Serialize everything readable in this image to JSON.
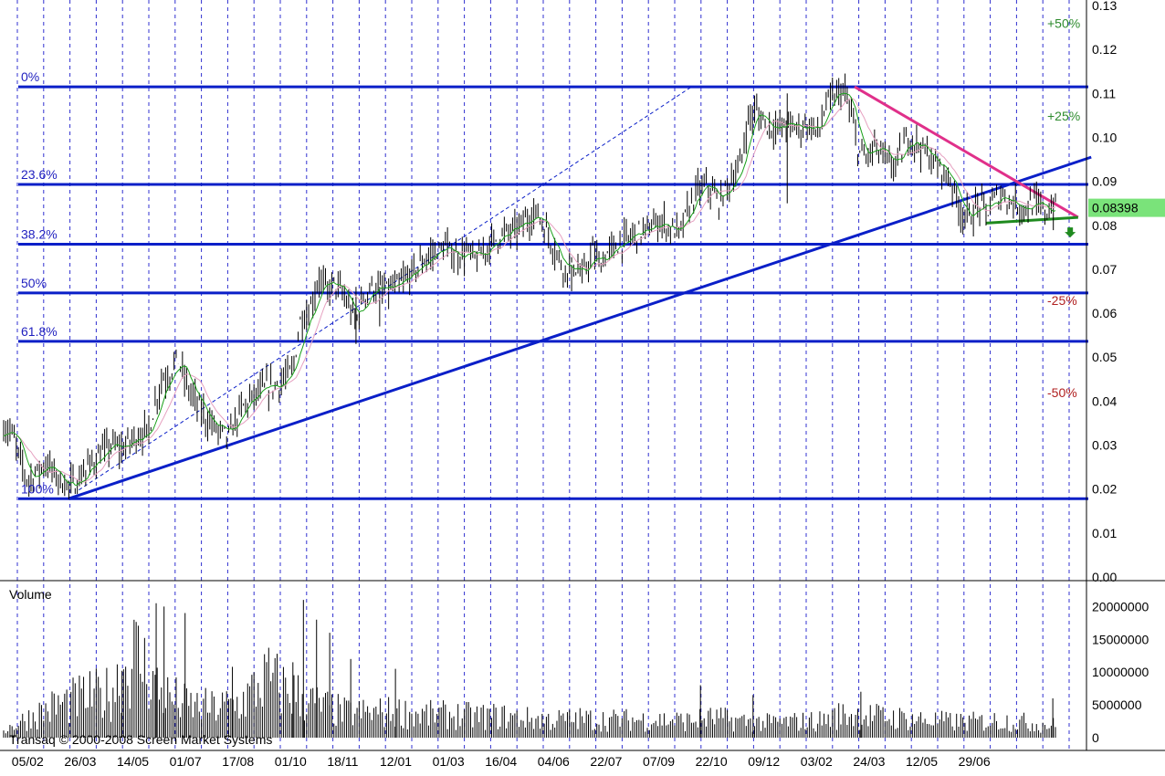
{
  "chart_data": {
    "type": "candlestick",
    "price_axis": {
      "ylim": [
        0.0,
        0.13
      ],
      "ticks": [
        "0.13",
        "0.12",
        "0.11",
        "0.10",
        "0.09",
        "0.08",
        "0.07",
        "0.06",
        "0.05",
        "0.04",
        "0.03",
        "0.02",
        "0.01",
        "0.00"
      ]
    },
    "volume_axis": {
      "label": "Volume",
      "ylim": [
        0,
        22000000
      ],
      "ticks": [
        "20000000",
        "15000000",
        "10000000",
        "5000000",
        "0"
      ]
    },
    "x_ticks": [
      "05/02",
      "26/03",
      "14/05",
      "01/07",
      "17/08",
      "01/10",
      "18/11",
      "12/01",
      "01/03",
      "16/04",
      "04/06",
      "22/07",
      "07/09",
      "22/10",
      "09/12",
      "03/02",
      "24/03",
      "12/05",
      "29/06"
    ],
    "last_price": "0.08398",
    "fib_levels": [
      {
        "label": "0%",
        "value": 0.1115
      },
      {
        "label": "23.6%",
        "value": 0.0893
      },
      {
        "label": "38.2%",
        "value": 0.0757
      },
      {
        "label": "50%",
        "value": 0.0646
      },
      {
        "label": "61.8%",
        "value": 0.0536
      },
      {
        "label": "100%",
        "value": 0.0178
      }
    ],
    "pct_levels": [
      {
        "label": "+50%",
        "value": 0.1259,
        "kind": "pos"
      },
      {
        "label": "+25%",
        "value": 0.1049,
        "kind": "pos"
      },
      {
        "label": "-25%",
        "value": 0.0629,
        "kind": "neg"
      },
      {
        "label": "-50%",
        "value": 0.0419,
        "kind": "neg"
      }
    ],
    "trendlines": [
      {
        "name": "support",
        "color": "#0a1fc8",
        "from": {
          "x": 2.6,
          "y": 0.0178
        },
        "to": {
          "x": 41.5,
          "y": 0.0955
        }
      },
      {
        "name": "resistance",
        "color": "#e0308a",
        "from": {
          "x": 32.5,
          "y": 0.1115
        },
        "to": {
          "x": 41.0,
          "y": 0.0818
        }
      },
      {
        "name": "low-support",
        "color": "#1f8a1f",
        "from": {
          "x": 37.5,
          "y": 0.0805
        },
        "to": {
          "x": 41.0,
          "y": 0.0818
        }
      },
      {
        "name": "channel",
        "color": "#0a1fc8",
        "dashed": true,
        "from": {
          "x": 3.0,
          "y": 0.0198
        },
        "to": {
          "x": 26.3,
          "y": 0.1115
        }
      }
    ],
    "price_path": [
      [
        0.0,
        0.034
      ],
      [
        0.3,
        0.033
      ],
      [
        0.6,
        0.027
      ],
      [
        0.9,
        0.022
      ],
      [
        1.3,
        0.024
      ],
      [
        1.6,
        0.026
      ],
      [
        2.0,
        0.023
      ],
      [
        2.3,
        0.021
      ],
      [
        2.7,
        0.021
      ],
      [
        3.2,
        0.025
      ],
      [
        3.7,
        0.028
      ],
      [
        4.1,
        0.03
      ],
      [
        4.5,
        0.029
      ],
      [
        5.0,
        0.032
      ],
      [
        5.5,
        0.033
      ],
      [
        6.0,
        0.045
      ],
      [
        6.3,
        0.046
      ],
      [
        6.6,
        0.05
      ],
      [
        7.0,
        0.043
      ],
      [
        7.3,
        0.04
      ],
      [
        7.7,
        0.036
      ],
      [
        8.2,
        0.033
      ],
      [
        8.6,
        0.032
      ],
      [
        9.0,
        0.038
      ],
      [
        9.5,
        0.041
      ],
      [
        10.0,
        0.043
      ],
      [
        10.5,
        0.044
      ],
      [
        11.0,
        0.047
      ],
      [
        11.3,
        0.059
      ],
      [
        11.6,
        0.06
      ],
      [
        12.0,
        0.068
      ],
      [
        12.3,
        0.065
      ],
      [
        12.6,
        0.067
      ],
      [
        13.0,
        0.063
      ],
      [
        13.4,
        0.058
      ],
      [
        13.7,
        0.064
      ],
      [
        14.0,
        0.066
      ],
      [
        14.5,
        0.065
      ],
      [
        15.0,
        0.066
      ],
      [
        15.5,
        0.069
      ],
      [
        16.0,
        0.072
      ],
      [
        16.4,
        0.074
      ],
      [
        16.8,
        0.075
      ],
      [
        17.2,
        0.073
      ],
      [
        17.6,
        0.074
      ],
      [
        18.0,
        0.072
      ],
      [
        18.5,
        0.076
      ],
      [
        19.0,
        0.078
      ],
      [
        19.5,
        0.079
      ],
      [
        20.0,
        0.082
      ],
      [
        20.3,
        0.083
      ],
      [
        20.6,
        0.079
      ],
      [
        21.0,
        0.074
      ],
      [
        21.3,
        0.07
      ],
      [
        21.7,
        0.071
      ],
      [
        22.0,
        0.068
      ],
      [
        22.4,
        0.074
      ],
      [
        22.7,
        0.071
      ],
      [
        23.0,
        0.074
      ],
      [
        23.5,
        0.076
      ],
      [
        24.0,
        0.078
      ],
      [
        24.5,
        0.079
      ],
      [
        25.0,
        0.081
      ],
      [
        25.4,
        0.079
      ],
      [
        25.7,
        0.078
      ],
      [
        26.0,
        0.083
      ],
      [
        26.4,
        0.088
      ],
      [
        26.8,
        0.089
      ],
      [
        27.2,
        0.085
      ],
      [
        27.6,
        0.09
      ],
      [
        28.0,
        0.093
      ],
      [
        28.3,
        0.104
      ],
      [
        28.6,
        0.106
      ],
      [
        29.0,
        0.103
      ],
      [
        29.4,
        0.102
      ],
      [
        29.8,
        0.103
      ],
      [
        30.2,
        0.102
      ],
      [
        30.6,
        0.103
      ],
      [
        31.0,
        0.101
      ],
      [
        31.3,
        0.108
      ],
      [
        31.6,
        0.109
      ],
      [
        31.9,
        0.111
      ],
      [
        32.2,
        0.106
      ],
      [
        32.5,
        0.097
      ],
      [
        32.8,
        0.095
      ],
      [
        33.1,
        0.098
      ],
      [
        33.4,
        0.096
      ],
      [
        33.8,
        0.093
      ],
      [
        34.1,
        0.096
      ],
      [
        34.4,
        0.1
      ],
      [
        34.7,
        0.099
      ],
      [
        35.0,
        0.097
      ],
      [
        35.4,
        0.094
      ],
      [
        35.8,
        0.092
      ],
      [
        36.1,
        0.089
      ],
      [
        36.4,
        0.083
      ],
      [
        36.8,
        0.082
      ],
      [
        37.1,
        0.085
      ],
      [
        37.4,
        0.083
      ],
      [
        37.7,
        0.086
      ],
      [
        38.0,
        0.087
      ],
      [
        38.4,
        0.085
      ],
      [
        38.8,
        0.084
      ],
      [
        39.2,
        0.085
      ],
      [
        39.6,
        0.083
      ],
      [
        40.0,
        0.084
      ]
    ],
    "volume_profile": [
      [
        0,
        1500000
      ],
      [
        2,
        4200000
      ],
      [
        3,
        6500000
      ],
      [
        4,
        8000000
      ],
      [
        5,
        9000000
      ],
      [
        6,
        17000000
      ],
      [
        7,
        9000000
      ],
      [
        8,
        6500000
      ],
      [
        9,
        6000000
      ],
      [
        10,
        7000000
      ],
      [
        11,
        12000000
      ],
      [
        12,
        9000000
      ],
      [
        13,
        6500000
      ],
      [
        14,
        5000000
      ],
      [
        15,
        5000000
      ],
      [
        16,
        5200000
      ],
      [
        17,
        4600000
      ],
      [
        18,
        4600000
      ],
      [
        19,
        4300000
      ],
      [
        20,
        4300000
      ],
      [
        21,
        3800000
      ],
      [
        22,
        3600000
      ],
      [
        23,
        3800000
      ],
      [
        24,
        3600000
      ],
      [
        25,
        3600000
      ],
      [
        26,
        3600000
      ],
      [
        27,
        3400000
      ],
      [
        28,
        4000000
      ],
      [
        29,
        3400000
      ],
      [
        30,
        3000000
      ],
      [
        31,
        3200000
      ],
      [
        32,
        3400000
      ],
      [
        33,
        4800000
      ],
      [
        34,
        4400000
      ],
      [
        35,
        4000000
      ],
      [
        36,
        3600000
      ],
      [
        37,
        3200000
      ],
      [
        38,
        3200000
      ],
      [
        39,
        3500000
      ],
      [
        40,
        3000000
      ]
    ],
    "volume_spikes": [
      [
        4.5,
        10200000
      ],
      [
        5.8,
        20500000
      ],
      [
        6.1,
        20000000
      ],
      [
        6.9,
        19000000
      ],
      [
        8.7,
        10800000
      ],
      [
        11.0,
        11500000
      ],
      [
        11.4,
        21000000
      ],
      [
        11.9,
        18000000
      ],
      [
        12.4,
        16000000
      ],
      [
        13.2,
        12000000
      ],
      [
        14.9,
        10500000
      ],
      [
        26.5,
        8000000
      ],
      [
        28.5,
        6500000
      ],
      [
        32.6,
        7000000
      ],
      [
        39.9,
        6000000
      ]
    ],
    "watermark": "Transaq © 2000-2008 Screen Market Systems"
  }
}
